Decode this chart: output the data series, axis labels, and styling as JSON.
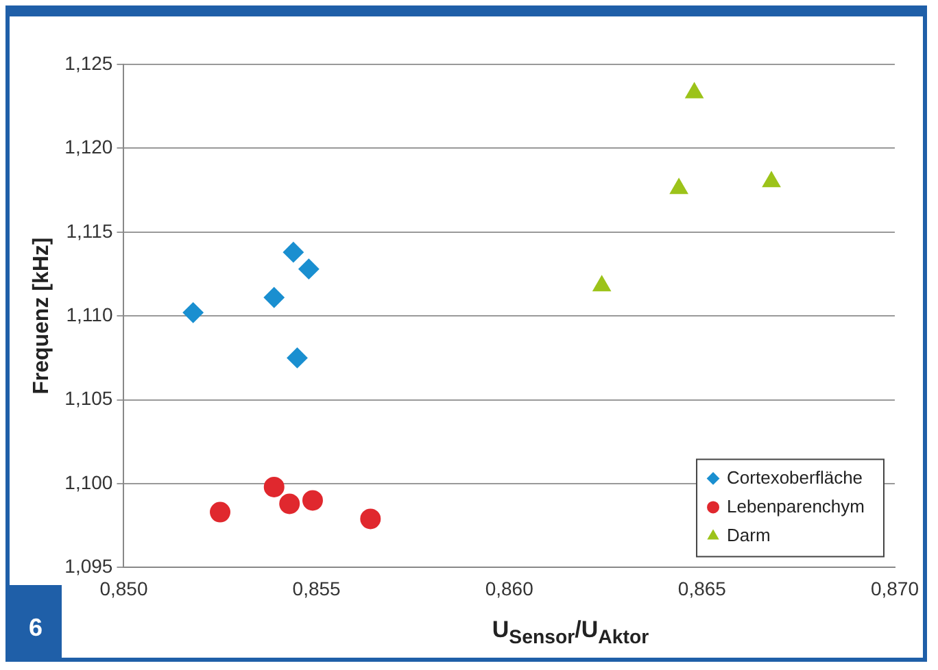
{
  "chart_data": {
    "type": "scatter",
    "xlabel": "U$_{Sensor}$/U$_{Aktor}$",
    "ylabel": "Frequenz [kHz]",
    "annotations": [
      "6"
    ],
    "xlim": [
      0.85,
      0.87
    ],
    "xticks": [
      {
        "value": 0.85,
        "label": "0,850"
      },
      {
        "value": 0.855,
        "label": "0,855"
      },
      {
        "value": 0.86,
        "label": "0,860"
      },
      {
        "value": 0.865,
        "label": "0,865"
      },
      {
        "value": 0.87,
        "label": "0,870"
      }
    ],
    "ylim": [
      1.095,
      1.125
    ],
    "yticks": [
      {
        "value": 1.095,
        "label": "1,095"
      },
      {
        "value": 1.1,
        "label": "1,100"
      },
      {
        "value": 1.105,
        "label": "1,105"
      },
      {
        "value": 1.11,
        "label": "1,110"
      },
      {
        "value": 1.115,
        "label": "1,115"
      },
      {
        "value": 1.12,
        "label": "1,120"
      },
      {
        "value": 1.125,
        "label": "1,125"
      }
    ],
    "grid": "y",
    "legend": "bottom right",
    "series": [
      {
        "name": "Cortexoberfläche",
        "color": "#1a8fd0",
        "marker": "diamond",
        "x": [
          0.8518,
          0.8539,
          0.8544,
          0.8548,
          0.8545
        ],
        "values": [
          1.1102,
          1.1111,
          1.1138,
          1.1128,
          1.1075
        ]
      },
      {
        "name": "Lebenparenchym",
        "color": "#e0282e",
        "marker": "circle",
        "x": [
          0.8525,
          0.8539,
          0.8543,
          0.8549,
          0.8564
        ],
        "values": [
          1.0983,
          1.0998,
          1.0988,
          1.099,
          1.0979
        ]
      },
      {
        "name": "Darm",
        "color": "#9cc31a",
        "marker": "triangle",
        "x": [
          0.8624,
          0.8644,
          0.8648,
          0.8668
        ],
        "values": [
          1.1118,
          1.1176,
          1.1233,
          1.118
        ]
      }
    ]
  }
}
